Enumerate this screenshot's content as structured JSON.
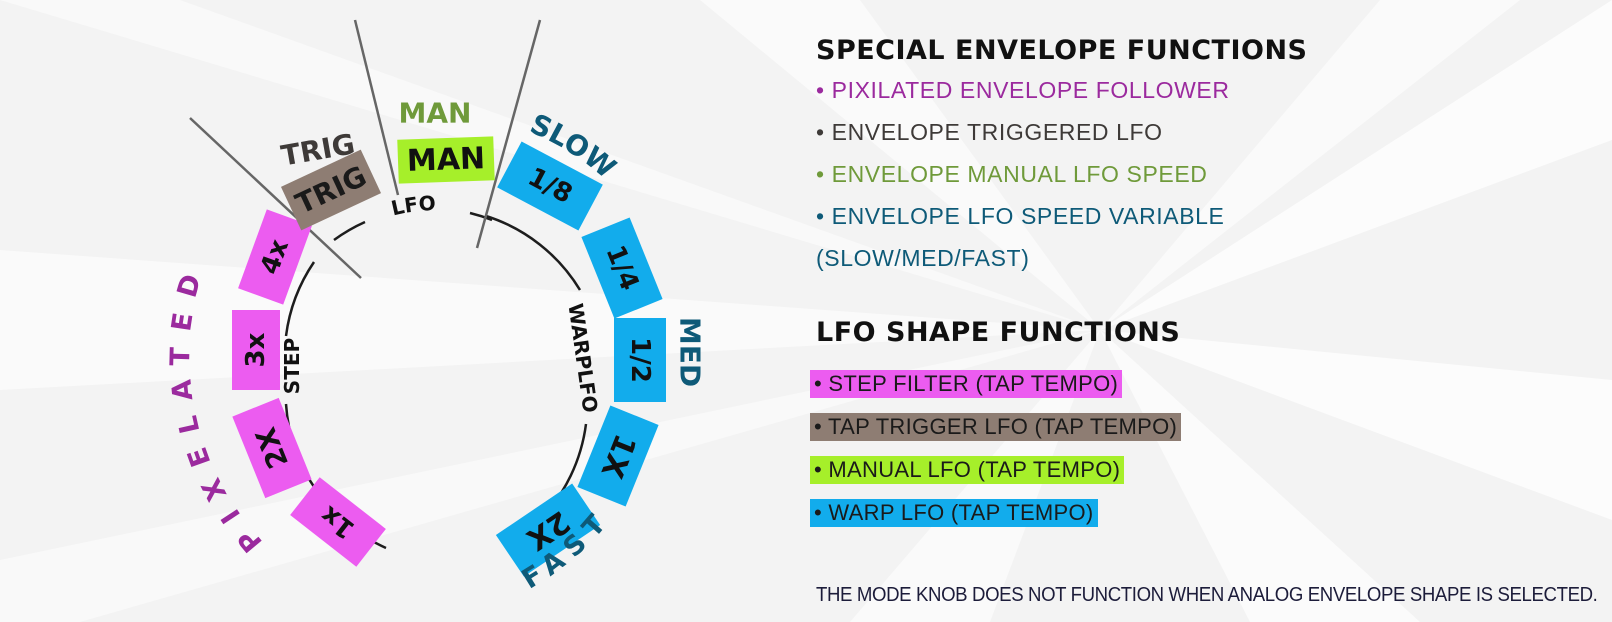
{
  "colors": {
    "pink": "#ec5cf0",
    "brown": "#8e7d73",
    "lime": "#a6ef2a",
    "blue": "#12acec",
    "purple_text": "#9b2a9e",
    "olive_text": "#6f9a3a",
    "teal_text": "#0e5a78",
    "dark_text": "#3e3a38"
  },
  "dial": {
    "group_labels": {
      "pixelated": "PIXELATED",
      "trig": "TRIG",
      "man": "MAN",
      "slow": "SLOW",
      "med": "MED",
      "fast": "FAST"
    },
    "segments": {
      "pixel_4x": "4x",
      "pixel_3x": "3x",
      "pixel_2x": "2X",
      "pixel_1x": "1x",
      "trig": "TRIG",
      "man": "MAN",
      "warp_1_8": "1/8",
      "warp_1_4": "1/4",
      "warp_1_2": "1/2",
      "warp_1x": "1X",
      "warp_2x": "2X"
    },
    "ring_labels": {
      "step": "STEP",
      "lfo": "LFO",
      "warplfo": "WARPLFO"
    }
  },
  "special": {
    "heading": "SPECIAL ENVELOPE FUNCTIONS",
    "items": [
      "• PIXILATED ENVELOPE FOLLOWER",
      "• ENVELOPE TRIGGERED LFO",
      "• ENVELOPE MANUAL LFO SPEED",
      "• ENVELOPE LFO SPEED VARIABLE",
      "(SLOW/MED/FAST)"
    ]
  },
  "lfo_shape": {
    "heading": "LFO SHAPE FUNCTIONS",
    "items": [
      "• STEP FILTER (TAP TEMPO)",
      "• TAP TRIGGER LFO (TAP TEMPO)",
      "• MANUAL LFO (TAP TEMPO)",
      "• WARP LFO (TAP TEMPO)"
    ]
  },
  "note": "THE MODE KNOB DOES NOT FUNCTION WHEN ANALOG ENVELOPE SHAPE IS SELECTED."
}
